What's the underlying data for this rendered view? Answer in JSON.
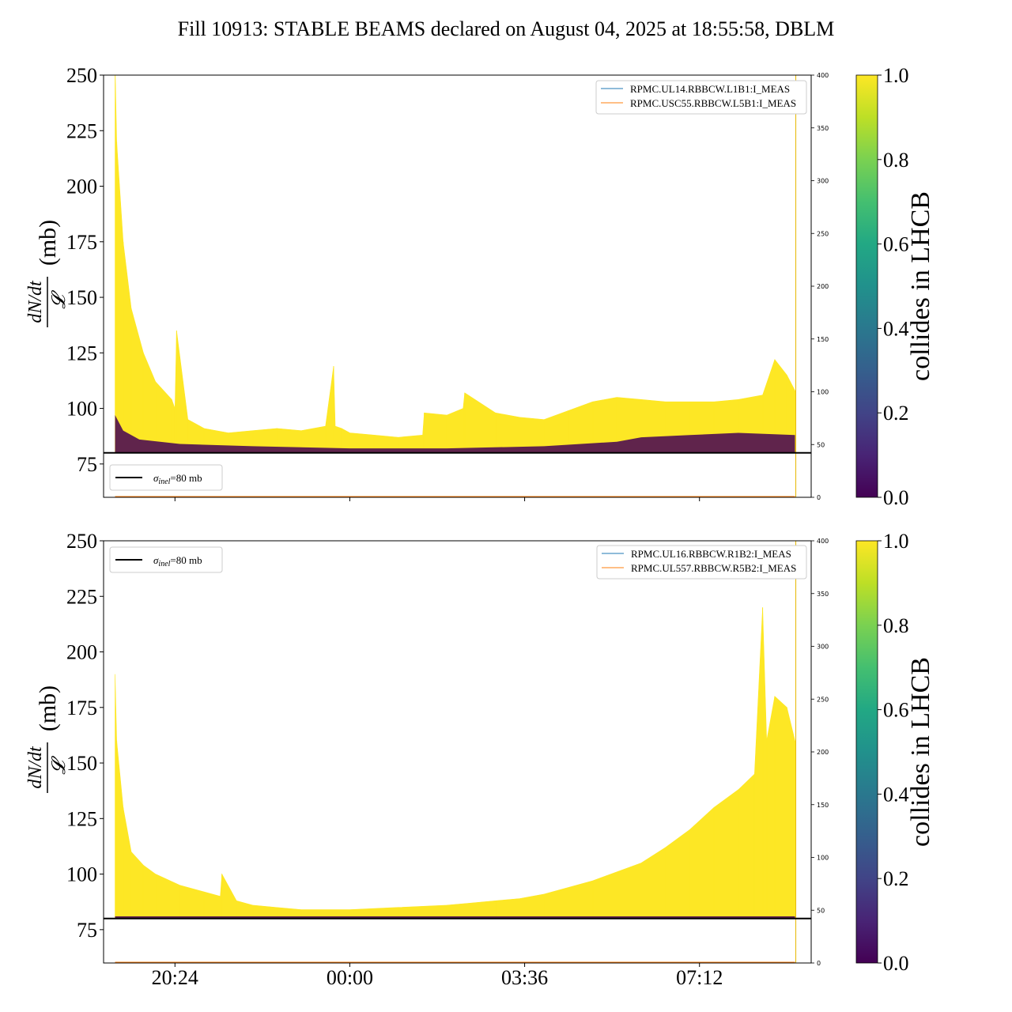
{
  "title": "Fill 10913: STABLE BEAMS declared on August 04, 2025 at 18:55:58, DBLM",
  "colors": {
    "yellow": "#fde725",
    "dark": "#440154",
    "line_blue": "#1f77b4",
    "line_orange": "#ff7f0e",
    "reference": "#000000"
  },
  "colormap": "viridis",
  "chart_data": [
    {
      "type": "area",
      "panel": "top",
      "ylabel_frac_numerator": "dN/dt",
      "ylabel_frac_denominator": "𝓛",
      "ylabel_unit": "(mb)",
      "ylim": [
        60,
        250
      ],
      "yticks": [
        75,
        100,
        125,
        150,
        175,
        200,
        225,
        250
      ],
      "y2lim": [
        0,
        400
      ],
      "y2ticks": [
        0,
        50,
        100,
        150,
        200,
        250,
        300,
        350,
        400
      ],
      "xlim_hours": [
        18.93,
        9.5
      ],
      "xticks": [
        "20:24",
        "00:00",
        "03:36",
        "07:12"
      ],
      "xtick_labels_visible": false,
      "reference_line": {
        "label": "σinel=80 mb",
        "value": 80
      },
      "legend_lines": [
        "RPMC.UL14.RBBCW.L1B1:I_MEAS",
        "RPMC.USC55.RBBCW.L5B1:I_MEAS"
      ],
      "lines_value": 0,
      "vertical_marker_time": "09:11",
      "upper_envelope": {
        "time": [
          "19:10",
          "19:12",
          "19:20",
          "19:30",
          "19:45",
          "20:00",
          "20:20",
          "20:24",
          "20:26",
          "20:40",
          "21:00",
          "21:30",
          "22:00",
          "22:30",
          "23:00",
          "23:30",
          "23:40",
          "23:42",
          "23:50",
          "00:00",
          "00:30",
          "01:00",
          "01:30",
          "01:32",
          "02:00",
          "02:20",
          "02:22",
          "03:00",
          "03:30",
          "04:00",
          "04:30",
          "05:00",
          "05:30",
          "06:00",
          "06:30",
          "07:00",
          "07:30",
          "08:00",
          "08:30",
          "08:45",
          "09:00",
          "09:10"
        ],
        "value": [
          255,
          220,
          175,
          145,
          125,
          112,
          104,
          100,
          135,
          95,
          91,
          89,
          90,
          91,
          90,
          92,
          119,
          92,
          91,
          89,
          88,
          87,
          88,
          98,
          97,
          100,
          107,
          98,
          96,
          95,
          99,
          103,
          105,
          104,
          103,
          103,
          103,
          104,
          106,
          122,
          115,
          108
        ]
      },
      "lower_band": {
        "time": [
          "19:10",
          "19:20",
          "19:40",
          "20:30",
          "22:00",
          "00:00",
          "02:00",
          "04:00",
          "05:30",
          "06:00",
          "07:00",
          "08:00",
          "09:10"
        ],
        "value": [
          97,
          90,
          86,
          84,
          83,
          82,
          82,
          83,
          85,
          87,
          88,
          89,
          88
        ]
      },
      "colorbar": {
        "label": "collides in LHCB",
        "range": [
          0.0,
          1.0
        ],
        "ticks": [
          "0.0",
          "0.2",
          "0.4",
          "0.6",
          "0.8",
          "1.0"
        ]
      }
    },
    {
      "type": "area",
      "panel": "bottom",
      "ylabel_frac_numerator": "dN/dt",
      "ylabel_frac_denominator": "𝓛",
      "ylabel_unit": "(mb)",
      "ylim": [
        60,
        250
      ],
      "yticks": [
        75,
        100,
        125,
        150,
        175,
        200,
        225,
        250
      ],
      "y2lim": [
        0,
        400
      ],
      "y2ticks": [
        0,
        50,
        100,
        150,
        200,
        250,
        300,
        350,
        400
      ],
      "xlim_hours": [
        18.93,
        9.5
      ],
      "xticks": [
        "20:24",
        "00:00",
        "03:36",
        "07:12"
      ],
      "xtick_labels_visible": true,
      "reference_line": {
        "label": "σinel=80 mb",
        "value": 80
      },
      "legend_lines": [
        "RPMC.UL16.RBBCW.R1B2:I_MEAS",
        "RPMC.UL557.RBBCW.R5B2:I_MEAS"
      ],
      "lines_value": 0,
      "vertical_marker_time": "09:11",
      "upper_envelope": {
        "time": [
          "19:10",
          "19:12",
          "19:20",
          "19:30",
          "19:45",
          "20:00",
          "20:30",
          "21:00",
          "21:20",
          "21:22",
          "21:40",
          "22:00",
          "22:30",
          "23:00",
          "00:00",
          "01:00",
          "02:00",
          "02:30",
          "03:00",
          "03:30",
          "04:00",
          "05:00",
          "06:00",
          "06:30",
          "07:00",
          "07:30",
          "08:00",
          "08:20",
          "08:30",
          "08:35",
          "08:45",
          "09:00",
          "09:10"
        ],
        "value": [
          190,
          160,
          130,
          110,
          104,
          100,
          95,
          92,
          90,
          100,
          88,
          86,
          85,
          84,
          84,
          85,
          86,
          87,
          88,
          89,
          91,
          97,
          105,
          112,
          120,
          130,
          138,
          145,
          220,
          160,
          180,
          175,
          160
        ]
      },
      "lower_band": {
        "time": [
          "19:10",
          "19:30",
          "20:00",
          "21:00",
          "22:00",
          "00:00",
          "03:00",
          "05:00",
          "07:00",
          "09:10"
        ],
        "value": [
          81,
          81,
          81,
          81,
          81,
          81,
          81,
          81,
          81,
          81
        ]
      },
      "colorbar": {
        "label": "collides in LHCB",
        "range": [
          0.0,
          1.0
        ],
        "ticks": [
          "0.0",
          "0.2",
          "0.4",
          "0.6",
          "0.8",
          "1.0"
        ]
      }
    }
  ]
}
